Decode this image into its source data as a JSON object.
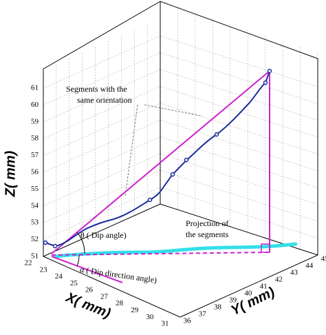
{
  "axes": {
    "z": {
      "label": "Z( mm)",
      "ticks": [
        51,
        52,
        53,
        54,
        55,
        56,
        57,
        58,
        59,
        60,
        61
      ]
    },
    "x": {
      "label": "X( mm)",
      "ticks": [
        22,
        23,
        24,
        25,
        26,
        27,
        28,
        29,
        30,
        31
      ]
    },
    "y": {
      "label": "Y( mm)",
      "ticks": [
        36,
        37,
        38,
        39,
        40,
        41,
        42,
        43,
        44,
        45
      ]
    }
  },
  "annotations": {
    "segments": [
      "Segments with the",
      "same orientation"
    ],
    "projection": [
      "Projection of",
      "the segments"
    ],
    "dip_angle": "θ ( Dip angle)",
    "dip_direction": "α ( Dip direction angle)"
  }
}
